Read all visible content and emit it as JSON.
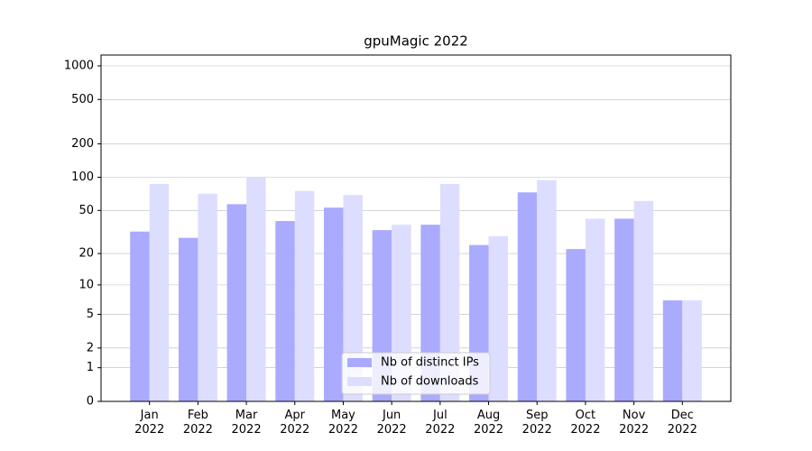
{
  "chart_data": {
    "type": "bar",
    "title": "gpuMagic 2022",
    "categories": [
      "Jan\n2022",
      "Feb\n2022",
      "Mar\n2022",
      "Apr\n2022",
      "May\n2022",
      "Jun\n2022",
      "Jul\n2022",
      "Aug\n2022",
      "Sep\n2022",
      "Oct\n2022",
      "Nov\n2022",
      "Dec\n2022"
    ],
    "series": [
      {
        "name": "Nb of distinct IPs",
        "color": "#aaaaff",
        "values": [
          32,
          28,
          57,
          40,
          53,
          33,
          37,
          24,
          73,
          22,
          42,
          7
        ]
      },
      {
        "name": "Nb of downloads",
        "color": "#ddddff",
        "values": [
          87,
          71,
          100,
          75,
          69,
          37,
          87,
          29,
          94,
          42,
          61,
          7
        ]
      }
    ],
    "scale": "log1p",
    "ylim": [
      0,
      1250
    ],
    "yticks": [
      0,
      1,
      2,
      5,
      10,
      20,
      50,
      100,
      200,
      500,
      1000
    ],
    "grid": true,
    "legend": "lower center"
  }
}
